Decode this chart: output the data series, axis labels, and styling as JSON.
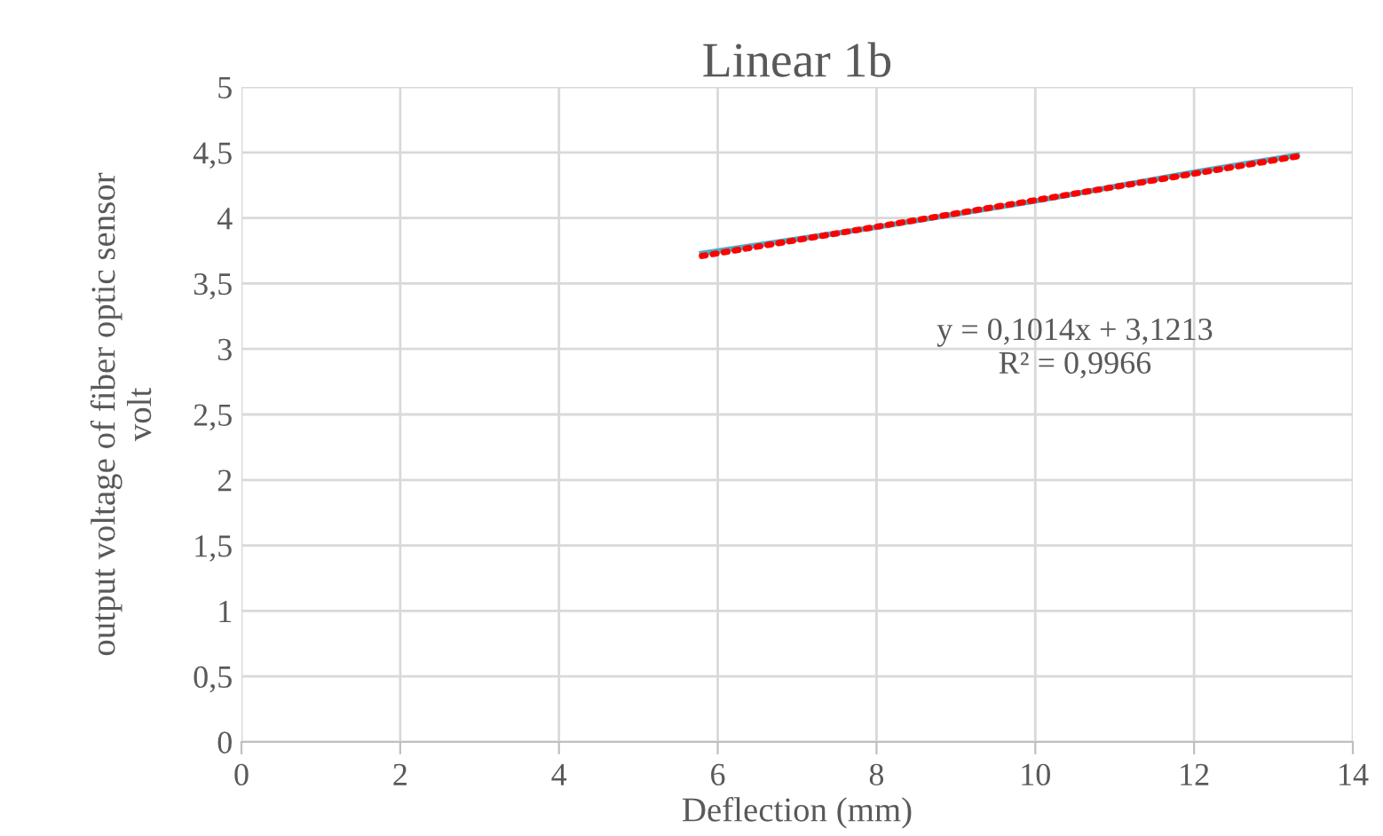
{
  "chart_data": {
    "type": "line",
    "title": "Linear 1b",
    "xlabel": "Deflection (mm)",
    "ylabel": "output voltage of fiber optic sensor\nvolt",
    "series": [
      {
        "color": "#4bacc6",
        "x": [
          5.8,
          8,
          10,
          12,
          13.3
        ],
        "values": [
          3.73,
          3.93,
          4.13,
          4.35,
          4.48
        ],
        "line_style": "solid"
      },
      {
        "color": "#ff0000",
        "x": [
          5.8,
          13.3
        ],
        "values": [
          3.71,
          4.47
        ],
        "line_style": "dotted"
      }
    ],
    "annotations": [
      "y = 0,1014x + 3,1213\nR² = 0,9966"
    ],
    "xlim": [
      0,
      14
    ],
    "xticks": [
      0,
      2,
      4,
      6,
      8,
      10,
      12,
      14
    ],
    "ylim": [
      0,
      5
    ],
    "yticks": [
      0,
      {
        "value": 0.5,
        "label": "0,5"
      },
      1,
      {
        "value": 1.5,
        "label": "1,5"
      },
      2,
      {
        "value": 2.5,
        "label": "2,5"
      },
      3,
      {
        "value": 3.5,
        "label": "3,5"
      },
      4,
      {
        "value": 4.5,
        "label": "4,5"
      },
      5
    ],
    "grid": true,
    "legend": false,
    "marker": "none"
  }
}
